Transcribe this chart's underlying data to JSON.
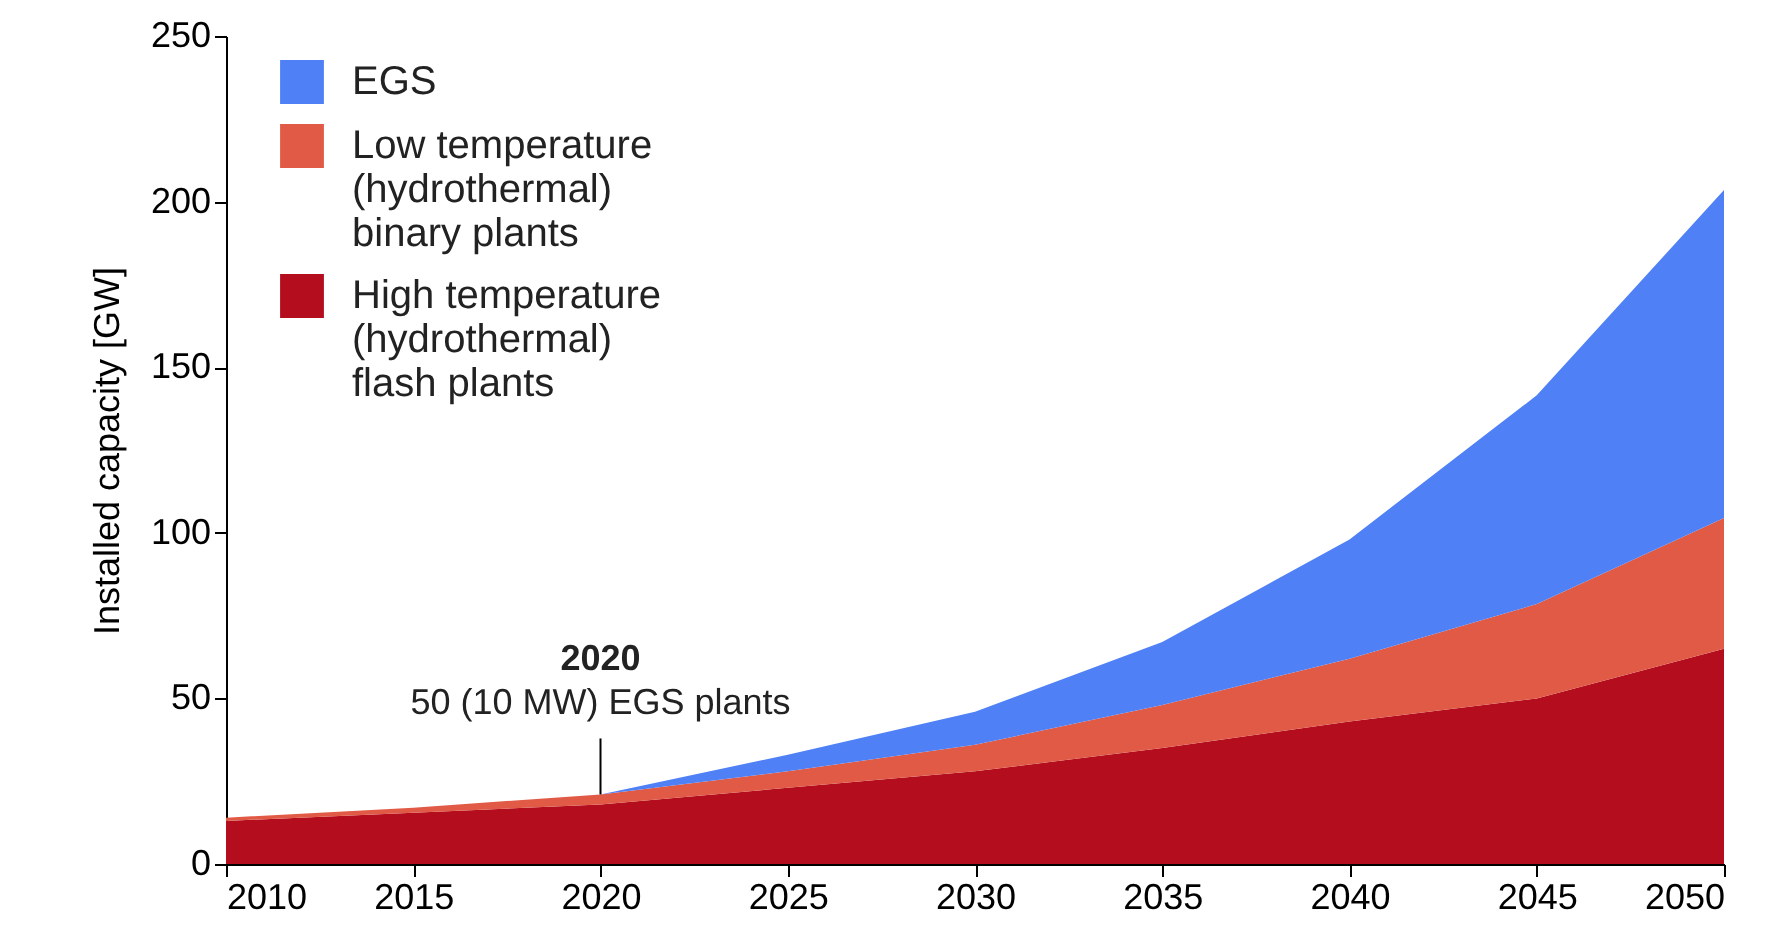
{
  "chart_data": {
    "type": "area",
    "stacked": true,
    "ylabel": "Installed capacity [GW]",
    "x": [
      2010,
      2015,
      2020,
      2025,
      2030,
      2035,
      2040,
      2045,
      2050
    ],
    "series": [
      {
        "name": "High temperature (hydrothermal) flash plants",
        "color": "#b30d1e",
        "values": [
          13,
          15.5,
          18,
          23,
          28,
          35,
          43,
          50,
          65
        ]
      },
      {
        "name": "Low temperature (hydrothermal) binary plants",
        "color": "#e05a46",
        "values": [
          1,
          1.5,
          3,
          5,
          8,
          13,
          19,
          28.5,
          39.5
        ]
      },
      {
        "name": "EGS",
        "color": "#4f80f5",
        "values": [
          0,
          0,
          0,
          5,
          10,
          19,
          36,
          63,
          99
        ]
      }
    ],
    "xlim": [
      2010,
      2050
    ],
    "xticks": [
      2010,
      2015,
      2020,
      2025,
      2030,
      2035,
      2040,
      2045,
      2050
    ],
    "ylim": [
      0,
      250
    ],
    "yticks": [
      0,
      50,
      100,
      150,
      200,
      250
    ],
    "legend": "top left",
    "grid": false,
    "annotations": [
      "2020",
      {
        "text": "50 (10 MW) EGS plants",
        "x": 2020,
        "y": 21
      }
    ]
  }
}
